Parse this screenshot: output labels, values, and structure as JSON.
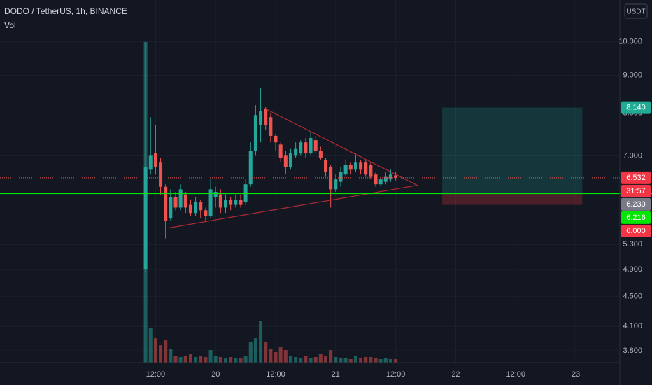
{
  "chart_data": {
    "type": "candlestick",
    "title": "DODO / TetherUS, 1h, BINANCE",
    "volume_label": "Vol",
    "currency": "USDT",
    "log_scale": true,
    "up_color": "#26a69a",
    "down_color": "#ef5350",
    "x": [
      10,
      11,
      12,
      13,
      14,
      15,
      16,
      17,
      18,
      19,
      20,
      21,
      22,
      23,
      24,
      25,
      26,
      27,
      28,
      29,
      30,
      31,
      32,
      33,
      34,
      35,
      36,
      37,
      38,
      39,
      40,
      41,
      42,
      43,
      44,
      45,
      46,
      47,
      48,
      49,
      50,
      51,
      52,
      53,
      54,
      55,
      56,
      57,
      58,
      59,
      60
    ],
    "open": [
      4.9,
      6.7,
      7.05,
      6.85,
      6.35,
      5.75,
      6.15,
      5.95,
      6.2,
      6.0,
      5.85,
      6.05,
      5.9,
      5.8,
      6.15,
      6.2,
      5.95,
      6.1,
      6.0,
      6.1,
      6.05,
      6.4,
      7.1,
      7.7,
      8.1,
      7.9,
      7.45,
      7.25,
      7.0,
      6.75,
      7.0,
      7.05,
      7.3,
      7.05,
      7.35,
      7.1,
      6.9,
      6.75,
      6.3,
      6.45,
      6.6,
      6.8,
      6.7,
      6.85,
      6.85,
      6.8,
      6.6,
      6.4,
      6.45,
      6.5,
      6.58
    ],
    "high": [
      10.0,
      7.9,
      7.7,
      6.95,
      6.4,
      6.3,
      6.25,
      6.4,
      6.25,
      6.1,
      6.15,
      6.1,
      5.95,
      6.5,
      6.35,
      6.3,
      6.2,
      6.15,
      6.2,
      6.2,
      6.5,
      7.3,
      8.2,
      8.65,
      8.15,
      8.0,
      7.5,
      7.3,
      7.1,
      7.15,
      7.3,
      7.35,
      7.4,
      7.55,
      7.45,
      7.2,
      6.95,
      6.8,
      6.6,
      6.75,
      6.9,
      6.85,
      7.05,
      6.9,
      6.9,
      6.85,
      6.65,
      6.55,
      6.65,
      6.7,
      6.65
    ],
    "low": [
      4.85,
      6.6,
      6.6,
      6.2,
      5.4,
      5.7,
      5.9,
      5.9,
      5.85,
      5.8,
      5.8,
      5.75,
      5.7,
      5.75,
      5.95,
      5.85,
      5.85,
      5.9,
      5.95,
      5.95,
      6.0,
      6.35,
      7.0,
      7.3,
      7.6,
      7.3,
      7.1,
      6.85,
      6.6,
      6.7,
      6.95,
      7.0,
      6.95,
      7.0,
      7.05,
      6.9,
      6.55,
      5.95,
      6.25,
      6.35,
      6.55,
      6.6,
      6.65,
      6.6,
      6.55,
      6.5,
      6.35,
      6.35,
      6.4,
      6.45,
      6.48
    ],
    "close": [
      6.75,
      7.0,
      6.75,
      6.35,
      5.7,
      6.15,
      5.95,
      6.3,
      5.95,
      5.85,
      6.05,
      5.9,
      5.8,
      6.3,
      6.25,
      5.95,
      6.1,
      6.0,
      6.1,
      6.0,
      6.4,
      7.1,
      7.95,
      8.05,
      7.7,
      7.45,
      7.3,
      6.95,
      6.75,
      7.05,
      7.15,
      7.3,
      7.05,
      7.4,
      7.1,
      6.95,
      6.65,
      6.3,
      6.5,
      6.65,
      6.8,
      6.7,
      6.85,
      6.7,
      6.6,
      6.55,
      6.4,
      6.5,
      6.55,
      6.6,
      6.532
    ],
    "volume": [
      460,
      50,
      35,
      25,
      32,
      20,
      10,
      8,
      10,
      12,
      8,
      10,
      8,
      18,
      10,
      8,
      6,
      8,
      6,
      6,
      10,
      30,
      35,
      60,
      30,
      20,
      15,
      22,
      18,
      10,
      8,
      6,
      10,
      6,
      8,
      12,
      10,
      18,
      8,
      6,
      6,
      5,
      10,
      6,
      8,
      8,
      6,
      5,
      6,
      5,
      5
    ],
    "xlim": [
      -19.1,
      104.8
    ],
    "xticks": [
      {
        "value": 12,
        "label": "12:00"
      },
      {
        "value": 24,
        "label": "20"
      },
      {
        "value": 36,
        "label": "12:00"
      },
      {
        "value": 48,
        "label": "21"
      },
      {
        "value": 60,
        "label": "12:00"
      },
      {
        "value": 72,
        "label": "22"
      },
      {
        "value": 84,
        "label": "12:00"
      },
      {
        "value": 96,
        "label": "23"
      }
    ],
    "ylim": [
      3.66,
      11.4
    ],
    "yticks": [
      {
        "value": 10,
        "label": "10.000"
      },
      {
        "value": 9,
        "label": "9.000"
      },
      {
        "value": 8,
        "label": "8.000"
      },
      {
        "value": 7,
        "label": "7.000"
      },
      {
        "value": 5.3,
        "label": "5.300"
      },
      {
        "value": 4.9,
        "label": "4.900"
      },
      {
        "value": 4.5,
        "label": "4.500"
      },
      {
        "value": 4.1,
        "label": "4.100"
      },
      {
        "value": 3.8,
        "label": "3.800"
      }
    ],
    "triangle": [
      [
        33.8,
        8.12
      ],
      [
        14.5,
        5.58
      ],
      [
        64.3,
        6.38
      ]
    ],
    "triangle_color": "#b22833",
    "position": {
      "x_start": 69.3,
      "x_end": 97.3,
      "target": 8.14,
      "entry": 6.216,
      "stop": 6.0
    },
    "last_price": 6.532,
    "countdown": "31:57",
    "price_labels": [
      {
        "value": 8.14,
        "label": "8.140",
        "color": "#22ab94"
      },
      {
        "value": 6.532,
        "label": "6.532",
        "color": "#f23645"
      },
      {
        "value": 6.23,
        "label": "6.230",
        "color": "#787b86"
      },
      {
        "value": 6.216,
        "label": "6.216",
        "color": "#00e600"
      },
      {
        "value": 6.0,
        "label": "6.000",
        "color": "#f23645"
      }
    ]
  }
}
